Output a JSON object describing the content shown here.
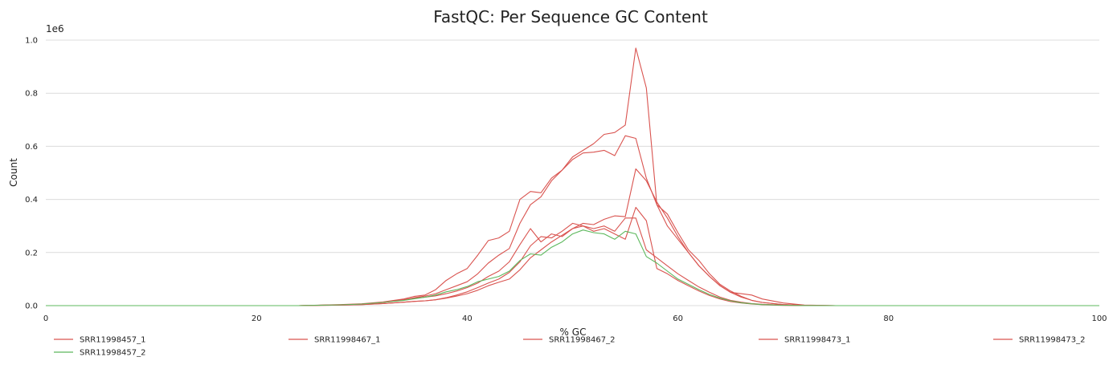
{
  "chart_data": {
    "type": "line",
    "title": "FastQC: Per Sequence GC Content",
    "xlabel": "% GC",
    "ylabel": "Count",
    "y_scale_label": "1e6",
    "xlim": [
      0,
      100
    ],
    "ylim": [
      0,
      1000000
    ],
    "x_ticks": [
      0,
      20,
      40,
      60,
      80,
      100
    ],
    "y_ticks": [
      0,
      200000,
      400000,
      600000,
      800000,
      1000000
    ],
    "x_tick_labels": [
      "0",
      "20",
      "40",
      "60",
      "80",
      "100"
    ],
    "y_tick_labels": [
      "0.0",
      "0.2",
      "0.4",
      "0.6",
      "0.8",
      "1.0"
    ],
    "grid": "horizontal",
    "legend_position": "bottom",
    "series": [
      {
        "name": "SRR11998457_1",
        "color": "#d9534f",
        "x": [
          0,
          20,
          24,
          28,
          30,
          32,
          34,
          35,
          36,
          37,
          38,
          39,
          40,
          41,
          42,
          43,
          44,
          45,
          46,
          47,
          48,
          49,
          50,
          51,
          52,
          53,
          54,
          55,
          56,
          57,
          58,
          59,
          60,
          61,
          62,
          63,
          64,
          65,
          66,
          67,
          68,
          70,
          72,
          75,
          80,
          100
        ],
        "y": [
          0,
          0,
          0,
          3000,
          6000,
          12000,
          22000,
          28000,
          32000,
          37000,
          45000,
          55000,
          68000,
          85000,
          110000,
          130000,
          165000,
          230000,
          290000,
          240000,
          270000,
          260000,
          290000,
          300000,
          290000,
          300000,
          280000,
          330000,
          330000,
          210000,
          180000,
          150000,
          120000,
          95000,
          70000,
          50000,
          32000,
          20000,
          13000,
          8000,
          5000,
          2000,
          500,
          0,
          0,
          0
        ]
      },
      {
        "name": "SRR11998467_1",
        "color": "#d9534f",
        "x": [
          0,
          20,
          24,
          28,
          30,
          32,
          34,
          35,
          36,
          37,
          38,
          39,
          40,
          41,
          42,
          43,
          44,
          45,
          46,
          47,
          48,
          49,
          50,
          51,
          52,
          53,
          54,
          55,
          56,
          57,
          58,
          59,
          60,
          61,
          62,
          63,
          64,
          65,
          66,
          67,
          68,
          70,
          72,
          75,
          80,
          100
        ],
        "y": [
          0,
          0,
          0,
          4000,
          7000,
          14000,
          25000,
          35000,
          40000,
          60000,
          95000,
          120000,
          140000,
          190000,
          245000,
          255000,
          280000,
          400000,
          430000,
          425000,
          480000,
          510000,
          560000,
          585000,
          610000,
          645000,
          652000,
          680000,
          970000,
          820000,
          380000,
          345000,
          275000,
          210000,
          170000,
          120000,
          80000,
          55000,
          35000,
          20000,
          12000,
          4000,
          1000,
          0,
          0,
          0
        ]
      },
      {
        "name": "SRR11998467_2",
        "color": "#d9534f",
        "x": [
          0,
          20,
          24,
          28,
          30,
          32,
          34,
          35,
          36,
          37,
          38,
          39,
          40,
          41,
          42,
          43,
          44,
          45,
          46,
          47,
          48,
          49,
          50,
          51,
          52,
          53,
          54,
          55,
          56,
          57,
          58,
          59,
          60,
          61,
          62,
          63,
          64,
          65,
          66,
          67,
          68,
          70,
          72,
          75,
          80,
          100
        ],
        "y": [
          0,
          0,
          0,
          3000,
          6000,
          12000,
          22000,
          30000,
          36000,
          45000,
          60000,
          75000,
          90000,
          120000,
          160000,
          190000,
          215000,
          310000,
          380000,
          410000,
          470000,
          510000,
          550000,
          575000,
          578000,
          585000,
          565000,
          640000,
          630000,
          480000,
          380000,
          300000,
          250000,
          200000,
          150000,
          110000,
          75000,
          50000,
          32000,
          20000,
          12000,
          4000,
          1000,
          0,
          0,
          0
        ]
      },
      {
        "name": "SRR11998473_1",
        "color": "#d9534f",
        "x": [
          0,
          20,
          24,
          28,
          30,
          32,
          34,
          35,
          36,
          37,
          38,
          39,
          40,
          41,
          42,
          43,
          44,
          45,
          46,
          47,
          48,
          49,
          50,
          51,
          52,
          53,
          54,
          55,
          56,
          57,
          58,
          59,
          60,
          61,
          62,
          63,
          64,
          65,
          66,
          67,
          68,
          70,
          72,
          75,
          80,
          100
        ],
        "y": [
          0,
          0,
          0,
          2000,
          4000,
          8000,
          13000,
          16000,
          18000,
          22000,
          28000,
          36000,
          45000,
          58000,
          75000,
          88000,
          100000,
          135000,
          180000,
          210000,
          240000,
          265000,
          290000,
          310000,
          305000,
          325000,
          338000,
          335000,
          515000,
          470000,
          390000,
          330000,
          260000,
          200000,
          150000,
          110000,
          75000,
          50000,
          45000,
          40000,
          25000,
          10000,
          2000,
          0,
          0,
          0
        ]
      },
      {
        "name": "SRR11998473_2",
        "color": "#d9534f",
        "x": [
          0,
          20,
          24,
          28,
          30,
          32,
          34,
          35,
          36,
          37,
          38,
          39,
          40,
          41,
          42,
          43,
          44,
          45,
          46,
          47,
          48,
          49,
          50,
          51,
          52,
          53,
          54,
          55,
          56,
          57,
          58,
          59,
          60,
          61,
          62,
          63,
          64,
          65,
          66,
          67,
          68,
          70,
          72,
          75,
          80,
          100
        ],
        "y": [
          0,
          0,
          0,
          2000,
          4000,
          8000,
          13000,
          16000,
          18000,
          22000,
          30000,
          40000,
          52000,
          68000,
          85000,
          100000,
          125000,
          165000,
          225000,
          260000,
          255000,
          280000,
          310000,
          300000,
          280000,
          290000,
          270000,
          250000,
          370000,
          320000,
          140000,
          120000,
          95000,
          75000,
          55000,
          38000,
          25000,
          15000,
          10000,
          6000,
          3500,
          1000,
          0,
          0,
          0,
          0
        ]
      },
      {
        "name": "SRR11998457_2",
        "color": "#5cb85c",
        "x": [
          0,
          20,
          24,
          28,
          30,
          32,
          34,
          35,
          36,
          37,
          38,
          39,
          40,
          41,
          42,
          43,
          44,
          45,
          46,
          47,
          48,
          49,
          50,
          51,
          52,
          53,
          54,
          55,
          56,
          57,
          58,
          59,
          60,
          61,
          62,
          63,
          64,
          65,
          66,
          67,
          68,
          70,
          72,
          75,
          80,
          100
        ],
        "y": [
          0,
          0,
          0,
          3000,
          6000,
          12000,
          20000,
          26000,
          32000,
          40000,
          52000,
          60000,
          72000,
          90000,
          100000,
          110000,
          130000,
          170000,
          195000,
          190000,
          220000,
          240000,
          270000,
          285000,
          275000,
          270000,
          250000,
          280000,
          270000,
          185000,
          160000,
          130000,
          100000,
          80000,
          60000,
          42000,
          28000,
          18000,
          11000,
          7000,
          4000,
          1500,
          300,
          0,
          0,
          0
        ]
      }
    ]
  }
}
